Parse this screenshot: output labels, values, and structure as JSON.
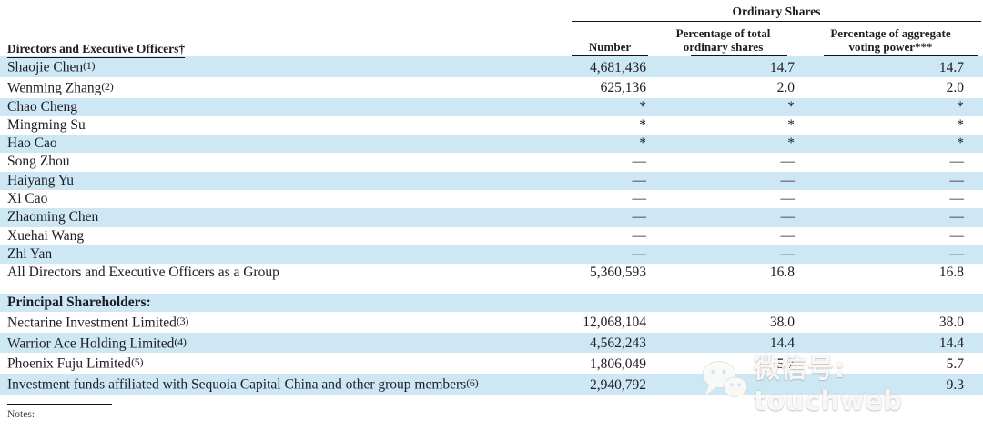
{
  "table": {
    "group_header": "Ordinary Shares",
    "col1_header": "Directors and Executive Officers†",
    "col2_header": "Number",
    "col3_header": [
      "Percentage of total",
      "ordinary shares"
    ],
    "col4_header": [
      "Percentage of aggregate",
      "voting power***"
    ],
    "stripe_color": "#cde7f5",
    "sections": [
      {
        "rows": [
          {
            "label": "Shaojie Chen",
            "fn": "(1)",
            "number": "4,681,436",
            "pct": "14.7",
            "vote": "14.7",
            "shaded": true
          },
          {
            "label": "Wenming Zhang",
            "fn": "(2)",
            "number": "625,136",
            "pct": "2.0",
            "vote": "2.0",
            "shaded": false
          },
          {
            "label": "Chao Cheng",
            "number": "*",
            "pct": "*",
            "vote": "*",
            "shaded": true
          },
          {
            "label": "Mingming Su",
            "number": "*",
            "pct": "*",
            "vote": "*",
            "shaded": false
          },
          {
            "label": "Hao Cao",
            "number": "*",
            "pct": "*",
            "vote": "*",
            "shaded": true
          },
          {
            "label": "Song Zhou",
            "number": "—",
            "pct": "—",
            "vote": "—",
            "shaded": false
          },
          {
            "label": "Haiyang Yu",
            "number": "—",
            "pct": "—",
            "vote": "—",
            "shaded": true
          },
          {
            "label": "Xi Cao",
            "number": "—",
            "pct": "—",
            "vote": "—",
            "shaded": false
          },
          {
            "label": "Zhaoming Chen",
            "number": "—",
            "pct": "—",
            "vote": "—",
            "shaded": true
          },
          {
            "label": "Xuehai Wang",
            "number": "—",
            "pct": "—",
            "vote": "—",
            "shaded": false
          },
          {
            "label": "Zhi Yan",
            "number": "—",
            "pct": "—",
            "vote": "—",
            "shaded": true
          },
          {
            "label": "All Directors and Executive Officers as a Group",
            "number": "5,360,593",
            "pct": "16.8",
            "vote": "16.8",
            "shaded": false
          }
        ]
      },
      {
        "spacer": true
      },
      {
        "rows": [
          {
            "label": "Principal Shareholders:",
            "bold": true,
            "shaded": true
          },
          {
            "label": "Nectarine Investment Limited",
            "fn": "(3)",
            "number": "12,068,104",
            "pct": "38.0",
            "vote": "38.0",
            "shaded": false
          },
          {
            "label": "Warrior Ace Holding Limited",
            "fn": "(4)",
            "number": "4,562,243",
            "pct": "14.4",
            "vote": "14.4",
            "shaded": true
          },
          {
            "label": "Phoenix Fuju Limited",
            "fn": "(5)",
            "number": "1,806,049",
            "pct": "5.7",
            "vote": "5.7",
            "shaded": false
          },
          {
            "label": "Investment funds affiliated with Sequoia Capital China and other group members",
            "fn": "(6)",
            "number": "2,940,792",
            "pct": "",
            "vote": "9.3",
            "shaded": true
          }
        ]
      }
    ]
  },
  "watermark": {
    "icon": "wechat-icon",
    "text": "微信号: touchweb"
  },
  "notes_label": "Notes:"
}
